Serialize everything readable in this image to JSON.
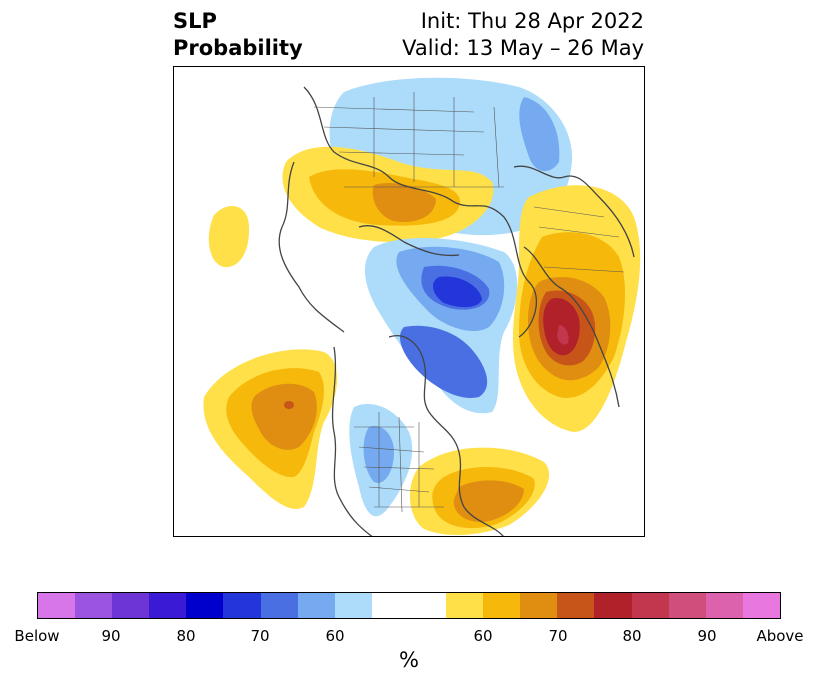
{
  "header": {
    "title_line1": "SLP",
    "title_line2": "Probability",
    "init": "Init: Thu 28 Apr 2022",
    "valid": "Valid: 13 May – 26 May"
  },
  "colorbar": {
    "below_colors": [
      "#d676e8",
      "#9b54e0",
      "#6d35d6",
      "#3a1ad4",
      "#0000cd",
      "#2336d9",
      "#4a6fe3",
      "#75aaf0",
      "#addcfb"
    ],
    "neutral_color": "#ffffff",
    "above_colors": [
      "#ffe048",
      "#f6b80b",
      "#df8e12",
      "#c75419",
      "#b0212a",
      "#c2374e",
      "#cf4e7c",
      "#dc62ad",
      "#e877df"
    ],
    "ticks": [
      "Below",
      "90",
      "80",
      "70",
      "60",
      "60",
      "70",
      "80",
      "90",
      "Above"
    ],
    "unit_label": "%"
  }
}
